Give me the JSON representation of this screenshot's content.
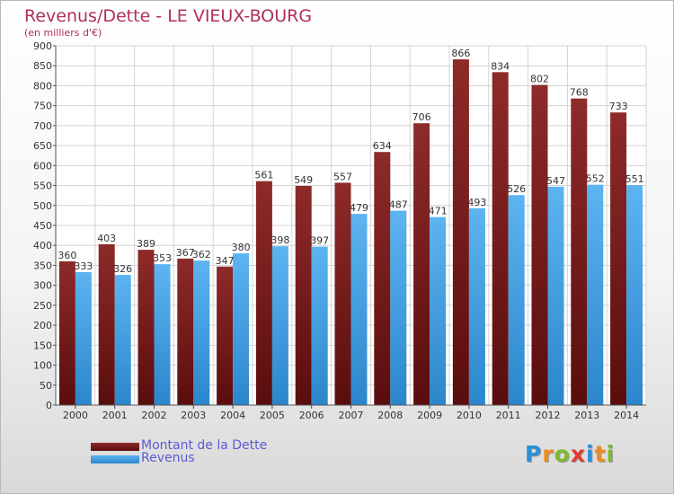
{
  "chart_data": {
    "type": "bar",
    "title": "Revenus/Dette - LE VIEUX-BOURG",
    "subtitle": "(en milliers d'€)",
    "categories": [
      "2000",
      "2001",
      "2002",
      "2003",
      "2004",
      "2005",
      "2006",
      "2007",
      "2008",
      "2009",
      "2010",
      "2011",
      "2012",
      "2013",
      "2014"
    ],
    "series": [
      {
        "name": "Montant de la Dette",
        "color": "#7a1c1c",
        "values": [
          360,
          403,
          389,
          367,
          347,
          561,
          549,
          557,
          634,
          706,
          866,
          834,
          802,
          768,
          733
        ]
      },
      {
        "name": "Revenus",
        "color": "#4aa3e6",
        "values": [
          333,
          326,
          353,
          362,
          380,
          398,
          397,
          479,
          487,
          471,
          493,
          526,
          547,
          552,
          551
        ]
      }
    ],
    "ylim": [
      0,
      900
    ],
    "yticks": [
      0,
      50,
      100,
      150,
      200,
      250,
      300,
      350,
      400,
      450,
      500,
      550,
      600,
      650,
      700,
      750,
      800,
      850,
      900
    ],
    "grid": true,
    "legend": "bottom-left"
  },
  "logo": {
    "letters": [
      "P",
      "r",
      "o",
      "x",
      "i",
      "t",
      "i"
    ],
    "colors": [
      "#2e8fd6",
      "#f08a1a",
      "#7dbb2d",
      "#e23b2e",
      "#2e8fd6",
      "#f08a1a",
      "#7dbb2d"
    ]
  }
}
